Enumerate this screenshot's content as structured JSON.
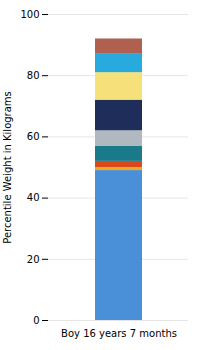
{
  "chart_data": {
    "type": "bar",
    "stacked": true,
    "categories": [
      "Boy 16 years 7 months"
    ],
    "series": [
      {
        "color": "#4A90D9",
        "values": [
          49.0
        ]
      },
      {
        "color": "#F5A623",
        "values": [
          1.0
        ]
      },
      {
        "color": "#D94A1A",
        "values": [
          2.0
        ]
      },
      {
        "color": "#1A7A8A",
        "values": [
          5.0
        ]
      },
      {
        "color": "#B0B8C0",
        "values": [
          5.0
        ]
      },
      {
        "color": "#1E2D5A",
        "values": [
          10.0
        ]
      },
      {
        "color": "#F5E07A",
        "values": [
          9.0
        ]
      },
      {
        "color": "#29AADF",
        "values": [
          6.0
        ]
      },
      {
        "color": "#B06050",
        "values": [
          5.0
        ]
      }
    ],
    "ylabel": "Percentile Weight in Kilograms",
    "ylim": [
      0,
      100
    ],
    "yticks": [
      0,
      20,
      40,
      60,
      80,
      100
    ],
    "grid": true
  }
}
